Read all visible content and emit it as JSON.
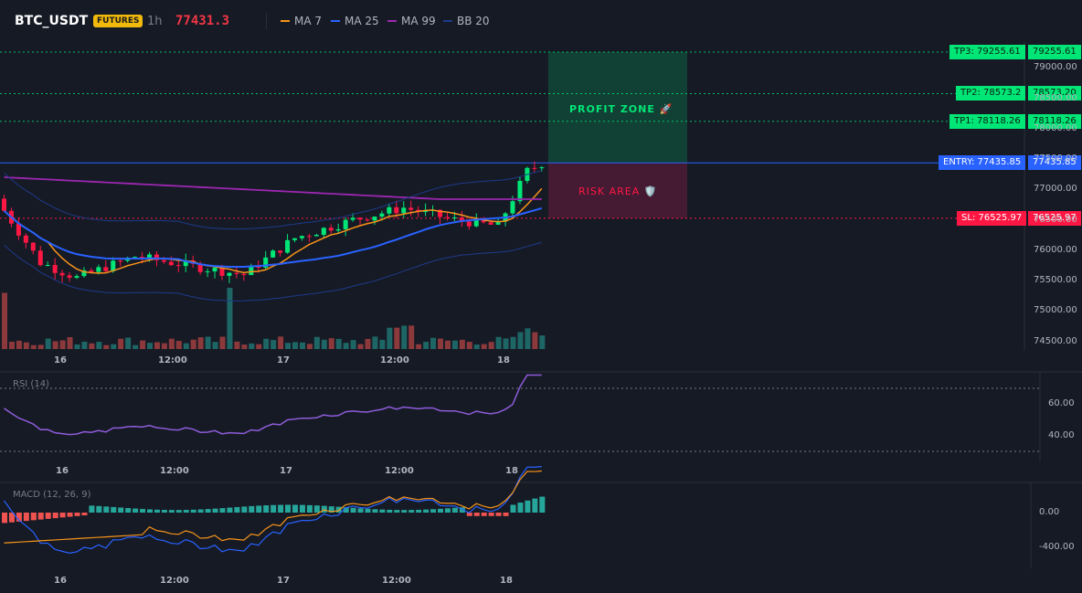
{
  "header": {
    "symbol": "BTC_USDT",
    "badge": "FUTURES",
    "timeframe": "1h",
    "last_price": "77431.3",
    "legend": [
      {
        "label": "MA 7",
        "color": "#f7931a"
      },
      {
        "label": "MA 25",
        "color": "#2962ff"
      },
      {
        "label": "MA 99",
        "color": "#9c27b0"
      },
      {
        "label": "BB 20",
        "color": "#1e3a8a"
      }
    ]
  },
  "levels": {
    "tp3": {
      "line_label": "TP3: 79255.61",
      "price": "79255.61",
      "value": 79255.61
    },
    "tp2": {
      "line_label": "TP2: 78573.2",
      "price": "78573.20",
      "value": 78573.2
    },
    "tp1": {
      "line_label": "TP1: 78118.26",
      "price": "78118.26",
      "value": 78118.26
    },
    "entry": {
      "line_label": "ENTRY: 77435.85",
      "price": "77435.85",
      "value": 77435.85
    },
    "sl": {
      "line_label": "SL: 76525.97",
      "price": "76525.97",
      "value": 76525.97
    }
  },
  "zones": {
    "profit": "PROFIT ZONE 🚀",
    "risk": "RISK AREA 🛡️"
  },
  "price_axis": [
    "79000.00",
    "78500.00",
    "78000.00",
    "77500.00",
    "77000.00",
    "76500.00",
    "76000.00",
    "75500.00",
    "75000.00",
    "74500.00"
  ],
  "time_axis": [
    "16",
    "12:00",
    "17",
    "12:00",
    "18"
  ],
  "rsi": {
    "title": "RSI (14)",
    "ticks": [
      "60.00",
      "40.00"
    ]
  },
  "macd": {
    "title": "MACD (12, 26, 9)",
    "ticks": [
      "0.00",
      "-400.00"
    ]
  },
  "colors": {
    "up": "#26a69a",
    "up_bright": "#00e676",
    "down": "#ef5350",
    "down_bright": "#ff1744",
    "bg": "#161a25"
  }
}
